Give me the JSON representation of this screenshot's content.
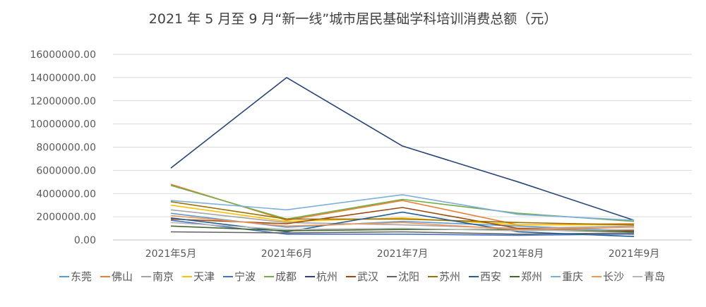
{
  "chart_data": {
    "type": "line",
    "title": "2021 年 5 月至 9 月“新一线”城市居民基础学科培训消费总额（元）",
    "xlabel": "",
    "ylabel": "",
    "categories": [
      "2021年5月",
      "2021年6月",
      "2021年7月",
      "2021年8月",
      "2021年9月"
    ],
    "ylim": [
      0,
      16000000
    ],
    "yticks": [
      "0.00",
      "2000000.00",
      "4000000.00",
      "6000000.00",
      "8000000.00",
      "10000000.00",
      "12000000.00",
      "14000000.00",
      "16000000.00"
    ],
    "grid": true,
    "legend_position": "bottom",
    "series": [
      {
        "name": "东莞",
        "color": "#5b9bd5",
        "values": [
          2300000,
          1100000,
          1600000,
          1200000,
          800000
        ]
      },
      {
        "name": "佛山",
        "color": "#ed7d31",
        "values": [
          4800000,
          1700000,
          3400000,
          1300000,
          1400000
        ]
      },
      {
        "name": "南京",
        "color": "#a5a5a5",
        "values": [
          2600000,
          1500000,
          1300000,
          1000000,
          1200000
        ]
      },
      {
        "name": "天津",
        "color": "#ffc000",
        "values": [
          3000000,
          1600000,
          1900000,
          1300000,
          1300000
        ]
      },
      {
        "name": "宁波",
        "color": "#4472c4",
        "values": [
          1700000,
          500000,
          500000,
          400000,
          500000
        ]
      },
      {
        "name": "成都",
        "color": "#70ad47",
        "values": [
          4700000,
          1800000,
          3500000,
          2300000,
          1600000
        ]
      },
      {
        "name": "杭州",
        "color": "#264478",
        "values": [
          6200000,
          14000000,
          8100000,
          5000000,
          1700000
        ]
      },
      {
        "name": "武汉",
        "color": "#9e480e",
        "values": [
          1800000,
          1400000,
          2800000,
          1000000,
          800000
        ]
      },
      {
        "name": "沈阳",
        "color": "#636363",
        "values": [
          700000,
          600000,
          700000,
          500000,
          600000
        ]
      },
      {
        "name": "苏州",
        "color": "#997300",
        "values": [
          3300000,
          1800000,
          1800000,
          1500000,
          1300000
        ]
      },
      {
        "name": "西安",
        "color": "#255e91",
        "values": [
          1900000,
          700000,
          2400000,
          700000,
          300000
        ]
      },
      {
        "name": "郑州",
        "color": "#43682b",
        "values": [
          1200000,
          800000,
          900000,
          900000,
          700000
        ]
      },
      {
        "name": "重庆",
        "color": "#7cafdd",
        "values": [
          3400000,
          2600000,
          3900000,
          2200000,
          1700000
        ]
      },
      {
        "name": "长沙",
        "color": "#f1975a",
        "values": [
          2100000,
          1200000,
          1500000,
          900000,
          1100000
        ]
      },
      {
        "name": "青岛",
        "color": "#b7b7b7",
        "values": [
          1500000,
          900000,
          1000000,
          800000,
          900000
        ]
      }
    ]
  }
}
